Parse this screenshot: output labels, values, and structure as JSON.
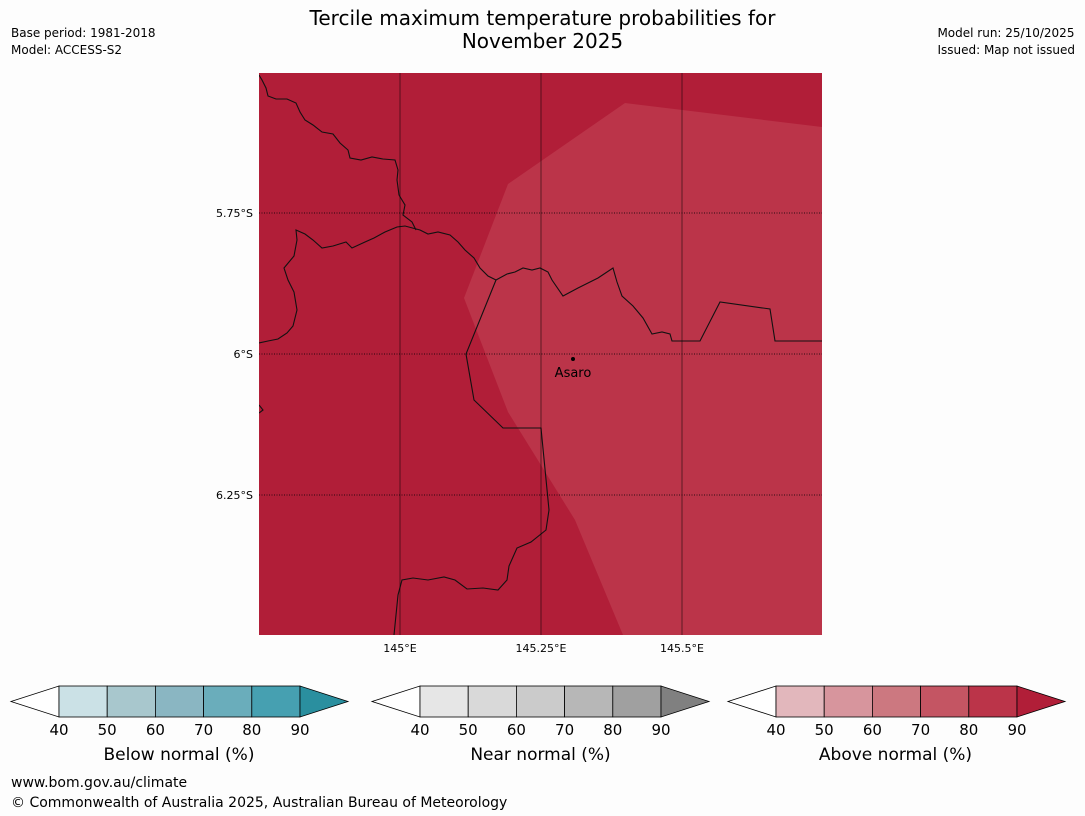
{
  "header": {
    "title_line1": "Tercile maximum temperature probabilities for",
    "title_line2": "November 2025",
    "base_period": "Base period: 1981-2018",
    "model": "Model: ACCESS-S2",
    "model_run": "Model run: 25/10/2025",
    "issued": "Issued: Map not issued"
  },
  "map": {
    "lat_ticks": [
      "5.75°S",
      "6°S",
      "6.25°S"
    ],
    "lon_ticks": [
      "145°E",
      "145.25°E",
      "145.5°E"
    ],
    "place_label": "Asaro",
    "colors": {
      "above_80_90": "#b11e38",
      "above_70_80": "#bb3449",
      "border": "#111111",
      "gridline": "#000000"
    }
  },
  "legend": {
    "below": {
      "label": "Below normal (%)",
      "ticks": [
        "40",
        "50",
        "60",
        "70",
        "80",
        "90"
      ],
      "colors": [
        "#cbe1e6",
        "#a8c7cd",
        "#8ab6c2",
        "#6aadbb",
        "#46a0b1",
        "#2a8f9f"
      ]
    },
    "near": {
      "label": "Near normal (%)",
      "ticks": [
        "40",
        "50",
        "60",
        "70",
        "80",
        "90"
      ],
      "colors": [
        "#e6e6e6",
        "#d9d9d9",
        "#cbcbcb",
        "#b7b7b7",
        "#a0a0a0",
        "#808080"
      ]
    },
    "above": {
      "label": "Above normal (%)",
      "ticks": [
        "40",
        "50",
        "60",
        "70",
        "80",
        "90"
      ],
      "colors": [
        "#e2b7bc",
        "#d7959d",
        "#cc7880",
        "#c45563",
        "#bb3449",
        "#b11e38"
      ]
    }
  },
  "footer": {
    "website": "www.bom.gov.au/climate",
    "copyright": "© Commonwealth of Australia 2025, Australian Bureau of Meteorology"
  }
}
